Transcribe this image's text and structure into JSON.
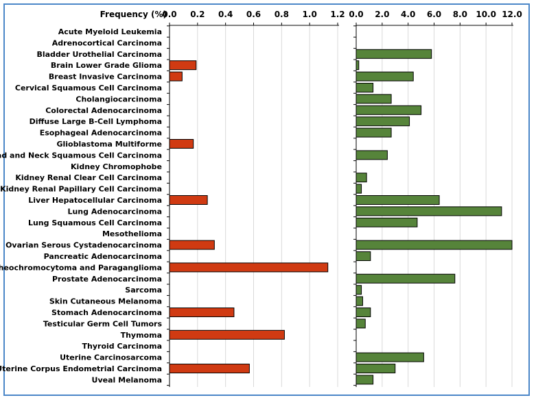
{
  "chart_data": {
    "type": "bar",
    "orientation": "horizontal",
    "title": "Frequency (%)",
    "categories": [
      "Acute Myeloid Leukemia",
      "Adrenocortical Carcinoma",
      "Bladder Urothelial Carcinoma",
      "Brain Lower Grade Glioma",
      "Breast Invasive Carcinoma",
      "Cervical Squamous Cell Carcinoma",
      "Cholangiocarcinoma",
      "Colorectal Adenocarcinoma ",
      "Diffuse Large B-Cell Lymphoma",
      "Esophageal Adenocarcinoma",
      "Glioblastoma Multiforme",
      "Head and Neck Squamous Cell Carcinoma",
      "Kidney Chromophobe",
      "Kidney Renal Clear Cell Carcinoma",
      "Kidney Renal Papillary Cell Carcinoma ",
      "Liver Hepatocellular Carcinoma",
      "Lung Adenocarcinoma",
      "Lung Squamous Cell Carcinoma",
      "Mesothelioma",
      "Ovarian Serous Cystadenocarcinoma",
      "Pancreatic Adenocarcinoma",
      "Pheochromocytoma and Paraganglioma",
      "Prostate Adenocarcinoma ",
      "Sarcoma",
      "Skin Cutaneous Melanoma",
      "Stomach Adenocarcinoma",
      "Testicular Germ Cell Tumors",
      "Thymoma ",
      "Thyroid Carcinoma",
      "Uterine Carcinosarcoma",
      "Uterine Corpus Endometrial Carcinoma",
      "Uveal Melanoma"
    ],
    "panels": [
      {
        "name": "left",
        "color": "#d03a12",
        "xlim": [
          0,
          1.2
        ],
        "ticks": [
          "0.0",
          "0.2",
          "0.4",
          "0.6",
          "0.8",
          "1.0",
          "1.2"
        ],
        "values": [
          0,
          0,
          0,
          0.19,
          0.09,
          0,
          0,
          0,
          0,
          0,
          0.17,
          0,
          0,
          0,
          0,
          0.27,
          0,
          0,
          0,
          0.32,
          0,
          1.13,
          0,
          0,
          0,
          0.46,
          0,
          0.82,
          0,
          0,
          0.57,
          0
        ]
      },
      {
        "name": "right",
        "color": "#56843a",
        "xlim": [
          0,
          12.0
        ],
        "ticks": [
          "0.0",
          "2.0",
          "4.0",
          "6.0",
          "8.0",
          "10.0",
          "12.0"
        ],
        "values": [
          0,
          0,
          5.8,
          0.2,
          4.4,
          1.3,
          2.7,
          5.0,
          4.1,
          2.7,
          0,
          2.4,
          0,
          0.8,
          0.4,
          6.4,
          11.2,
          4.7,
          0,
          12.0,
          1.1,
          0,
          7.6,
          0.4,
          0.5,
          1.1,
          0.7,
          0,
          0,
          5.2,
          3.0,
          1.3
        ]
      }
    ],
    "grid": "vertical"
  }
}
